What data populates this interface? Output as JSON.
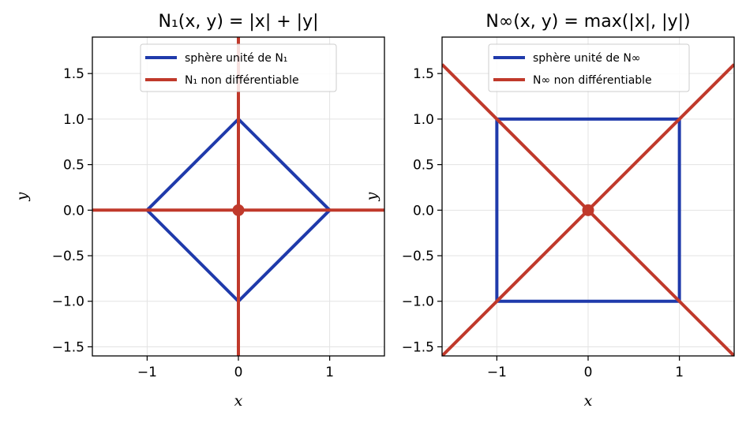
{
  "chart_data": [
    {
      "type": "line",
      "title": "N₁(x, y) = |x| + |y|",
      "xlabel": "x",
      "ylabel": "y",
      "xlim": [
        -1.6,
        1.6
      ],
      "ylim": [
        -1.6,
        1.9
      ],
      "xticks": [
        -1,
        0,
        1
      ],
      "xtick_labels": [
        "−1",
        "0",
        "1"
      ],
      "yticks": [
        -1.5,
        -1.0,
        -0.5,
        0.0,
        0.5,
        1.0,
        1.5
      ],
      "ytick_labels": [
        "−1.5",
        "−1.0",
        "−0.5",
        "0.0",
        "0.5",
        "1.0",
        "1.5"
      ],
      "grid": true,
      "legend_position": "top-center",
      "series": [
        {
          "name": "sphère unité de N₁",
          "color": "#1f3aab",
          "paths": [
            [
              [
                1,
                0
              ],
              [
                0,
                1
              ],
              [
                -1,
                0
              ],
              [
                0,
                -1
              ],
              [
                1,
                0
              ]
            ]
          ]
        },
        {
          "name": "N₁ non différentiable",
          "color": "#c0392b",
          "paths": [
            [
              [
                -1.6,
                0
              ],
              [
                1.6,
                0
              ]
            ],
            [
              [
                0,
                -1.6
              ],
              [
                0,
                1.9
              ]
            ]
          ],
          "points": [
            [
              0,
              0
            ]
          ]
        }
      ]
    },
    {
      "type": "line",
      "title": "N∞(x, y) = max(|x|, |y|)",
      "xlabel": "x",
      "ylabel": "y",
      "xlim": [
        -1.6,
        1.6
      ],
      "ylim": [
        -1.6,
        1.9
      ],
      "xticks": [
        -1,
        0,
        1
      ],
      "xtick_labels": [
        "−1",
        "0",
        "1"
      ],
      "yticks": [
        -1.5,
        -1.0,
        -0.5,
        0.0,
        0.5,
        1.0,
        1.5
      ],
      "ytick_labels": [
        "−1.5",
        "−1.0",
        "−0.5",
        "0.0",
        "0.5",
        "1.0",
        "1.5"
      ],
      "grid": true,
      "legend_position": "top-center",
      "series": [
        {
          "name": "sphère unité de N∞",
          "color": "#1f3aab",
          "paths": [
            [
              [
                -1,
                -1
              ],
              [
                1,
                -1
              ],
              [
                1,
                1
              ],
              [
                -1,
                1
              ],
              [
                -1,
                -1
              ]
            ]
          ]
        },
        {
          "name": "N∞ non différentiable",
          "color": "#c0392b",
          "paths": [
            [
              [
                -1.6,
                -1.6
              ],
              [
                1.6,
                1.6
              ]
            ],
            [
              [
                -1.6,
                1.6
              ],
              [
                1.6,
                -1.6
              ]
            ]
          ],
          "points": [
            [
              0,
              0
            ]
          ]
        }
      ]
    }
  ]
}
